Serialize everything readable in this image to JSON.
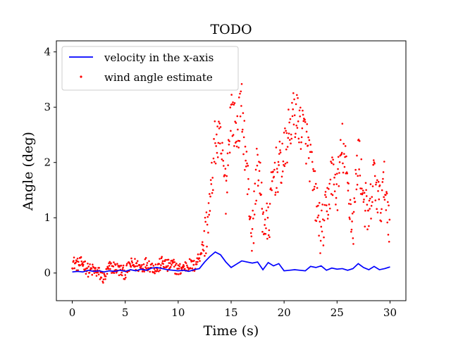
{
  "chart_data": {
    "type": "line",
    "title": "TODO",
    "xlabel": "Time (s)",
    "ylabel": "Angle (deg)",
    "xlim": [
      -1.5,
      31.5
    ],
    "ylim": [
      -0.5,
      4.2
    ],
    "xticks": [
      0,
      5,
      10,
      15,
      20,
      25,
      30
    ],
    "yticks": [
      0,
      1,
      2,
      3,
      4
    ],
    "grid": false,
    "legend": "top-left",
    "series": [
      {
        "name": "velocity in the x-axis",
        "type": "line",
        "color": "#0000ff",
        "x": [
          0,
          0.5,
          1,
          1.5,
          2,
          2.5,
          3,
          3.5,
          4,
          4.5,
          5,
          5.5,
          6,
          6.5,
          7,
          7.5,
          8,
          8.5,
          9,
          9.5,
          10,
          10.5,
          11,
          11.5,
          12,
          12.5,
          13,
          13.5,
          14,
          14.5,
          15,
          15.5,
          16,
          16.5,
          17,
          17.5,
          18,
          18.5,
          19,
          19.5,
          20,
          20.5,
          21,
          21.5,
          22,
          22.5,
          23,
          23.5,
          24,
          24.5,
          25,
          25.5,
          26,
          26.5,
          27,
          27.5,
          28,
          28.5,
          29,
          29.5,
          30
        ],
        "y": [
          0.02,
          0.03,
          0.02,
          0.05,
          0.03,
          0.04,
          0.02,
          0.04,
          0.03,
          0.05,
          0.03,
          0.06,
          0.04,
          0.07,
          0.05,
          0.09,
          0.1,
          0.08,
          0.06,
          0.05,
          0.04,
          0.05,
          0.03,
          0.06,
          0.08,
          0.2,
          0.3,
          0.38,
          0.33,
          0.2,
          0.1,
          0.16,
          0.22,
          0.2,
          0.18,
          0.2,
          0.06,
          0.19,
          0.13,
          0.17,
          0.04,
          0.05,
          0.06,
          0.05,
          0.04,
          0.12,
          0.1,
          0.13,
          0.05,
          0.09,
          0.07,
          0.08,
          0.05,
          0.08,
          0.17,
          0.1,
          0.06,
          0.12,
          0.06,
          0.08,
          0.11
        ]
      },
      {
        "name": "wind angle estimate",
        "type": "scatter",
        "color": "#ff0000",
        "anchors_x": [
          0,
          0.5,
          1,
          1.5,
          2,
          2.5,
          3,
          3.5,
          4,
          4.5,
          5,
          5.5,
          6,
          6.5,
          7,
          7.5,
          8,
          8.5,
          9,
          9.5,
          10,
          10.5,
          11,
          11.5,
          12,
          12.5,
          13,
          13.5,
          14,
          14.5,
          15,
          15.5,
          16,
          16.5,
          17,
          17.5,
          18,
          18.5,
          19,
          19.5,
          20,
          20.5,
          21,
          21.5,
          22,
          22.5,
          23,
          23.5,
          24,
          24.5,
          25,
          25.5,
          26,
          26.5,
          27,
          27.5,
          28,
          28.5,
          29,
          29.5,
          30
        ],
        "anchors_y": [
          0.2,
          0.15,
          0.18,
          0.05,
          0.05,
          0.0,
          -0.1,
          0.1,
          0.1,
          0.05,
          0.0,
          0.15,
          0.15,
          0.1,
          0.18,
          0.12,
          0.08,
          0.2,
          0.12,
          0.15,
          0.05,
          0.1,
          0.15,
          0.12,
          0.3,
          0.6,
          1.2,
          2.4,
          2.3,
          1.5,
          3.0,
          2.5,
          3.0,
          1.8,
          0.6,
          2.1,
          1.0,
          0.8,
          1.8,
          1.9,
          2.1,
          2.6,
          2.9,
          2.7,
          2.5,
          2.0,
          1.3,
          0.7,
          1.1,
          1.8,
          1.5,
          2.3,
          1.6,
          0.8,
          2.2,
          1.4,
          0.9,
          1.8,
          1.2,
          1.6,
          0.9
        ],
        "spread": 0.45,
        "points_per_interval": 12
      }
    ]
  }
}
